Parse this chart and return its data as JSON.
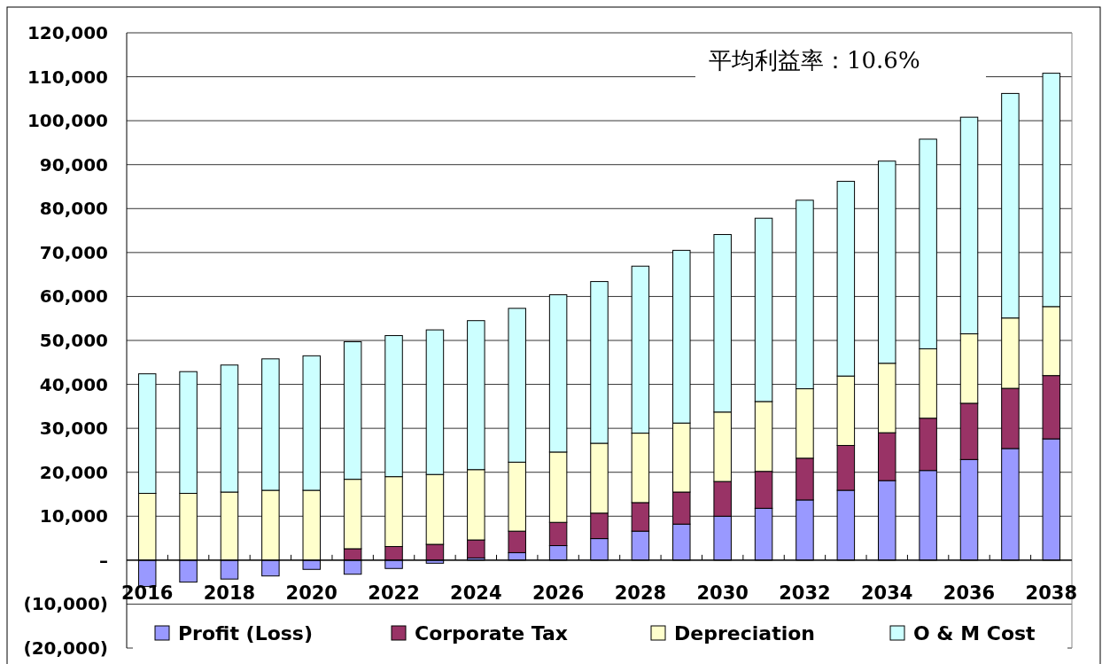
{
  "chart_data": {
    "type": "bar",
    "stacked": true,
    "categories": [
      "2016",
      null,
      "2018",
      null,
      "2020",
      null,
      "2022",
      null,
      "2024",
      null,
      "2026",
      null,
      "2028",
      null,
      "2030",
      null,
      "2032",
      null,
      "2034",
      null,
      "2036",
      null,
      "2038"
    ],
    "series": [
      {
        "name": "Profit (Loss)",
        "color": "#9999ff",
        "values": [
          -6000,
          -5000,
          -4300,
          -3600,
          -2100,
          -3200,
          -1900,
          -700,
          500,
          1700,
          3300,
          4900,
          6600,
          8200,
          10000,
          11800,
          13700,
          15900,
          18100,
          20400,
          22900,
          25400,
          27600
        ]
      },
      {
        "name": "Corporate Tax",
        "color": "#993366",
        "values": [
          0,
          0,
          0,
          0,
          0,
          2600,
          3100,
          3600,
          4100,
          4900,
          5300,
          5800,
          6500,
          7300,
          7900,
          8400,
          9500,
          10200,
          10900,
          11900,
          12800,
          13700,
          14400
        ]
      },
      {
        "name": "Depreciation",
        "color": "#ffffcc",
        "values": [
          15200,
          15200,
          15500,
          15900,
          15900,
          15800,
          15900,
          15900,
          16000,
          15700,
          16000,
          15900,
          15800,
          15700,
          15800,
          15900,
          15800,
          15800,
          15800,
          15800,
          15800,
          16000,
          15700
        ]
      },
      {
        "name": "O & M Cost",
        "color": "#ccffff",
        "values": [
          27200,
          27700,
          28900,
          29900,
          30600,
          31300,
          32100,
          32900,
          33900,
          35000,
          35800,
          36800,
          38000,
          39300,
          40400,
          41700,
          42900,
          44300,
          46000,
          47700,
          49300,
          51100,
          53100
        ]
      }
    ],
    "ylim": [
      -20000,
      120000
    ],
    "yticks": [
      {
        "value": -20000,
        "label": "(20,000)"
      },
      {
        "value": -10000,
        "label": "(10,000)"
      },
      {
        "value": 0,
        "label": "–"
      },
      {
        "value": 10000,
        "label": "10,000"
      },
      {
        "value": 20000,
        "label": "20,000"
      },
      {
        "value": 30000,
        "label": "30,000"
      },
      {
        "value": 40000,
        "label": "40,000"
      },
      {
        "value": 50000,
        "label": "50,000"
      },
      {
        "value": 60000,
        "label": "60,000"
      },
      {
        "value": 70000,
        "label": "70,000"
      },
      {
        "value": 80000,
        "label": "80,000"
      },
      {
        "value": 90000,
        "label": "90,000"
      },
      {
        "value": 100000,
        "label": "100,000"
      },
      {
        "value": 110000,
        "label": "110,000"
      },
      {
        "value": 120000,
        "label": "120,000"
      }
    ],
    "grid": "y",
    "legend": "bottom",
    "annotations": [
      "平均利益率：10.6%"
    ]
  }
}
